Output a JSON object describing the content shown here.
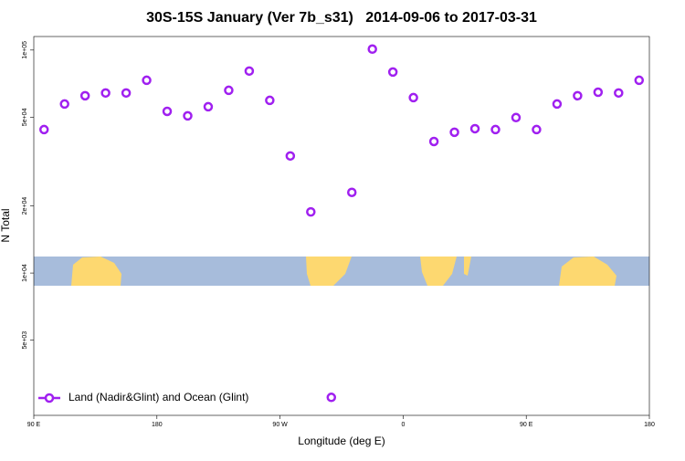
{
  "chart_data": {
    "type": "scatter",
    "title": "30S-15S January (Ver 7b_s31)   2014-09-06 to 2017-03-31",
    "x_label": "Longitude (deg E)",
    "y_label": "N Total",
    "x": [
      97.5,
      112.5,
      127.5,
      142.5,
      157.5,
      172.5,
      187.5,
      202.5,
      217.5,
      232.5,
      247.5,
      262.5,
      277.5,
      292.5,
      307.5,
      322.5,
      337.5,
      352.5,
      367.5,
      382.5,
      397.5,
      412.5,
      427.5,
      442.5,
      457.5,
      472.5,
      487.5,
      502.5,
      517.5,
      532.5
    ],
    "series": [
      {
        "name": "Land (Nadir&Glint) and Ocean (Glint)",
        "color": "#a020f0",
        "values": [
          44000,
          57300,
          62400,
          64200,
          64200,
          73200,
          53100,
          50700,
          55700,
          66000,
          80500,
          59500,
          33500,
          18800,
          2770,
          23000,
          101000,
          79700,
          61200,
          38900,
          42800,
          44400,
          44000,
          49800,
          44000,
          57300,
          62400,
          64700,
          64200,
          73200
        ]
      }
    ],
    "xlim": [
      90,
      540
    ],
    "xticks": [
      {
        "value": 90,
        "label": "90 E"
      },
      {
        "value": 180,
        "label": "180"
      },
      {
        "value": 270,
        "label": "90 W"
      },
      {
        "value": 360,
        "label": "0"
      },
      {
        "value": 450,
        "label": "90 E"
      },
      {
        "value": 540,
        "label": "180"
      }
    ],
    "ylim": [
      2300,
      115000
    ],
    "yscale": "log",
    "yticks": [
      {
        "value": 100000,
        "label": "1e+05"
      },
      {
        "value": 50000,
        "label": "5e+04"
      },
      {
        "value": 20000,
        "label": "2e+04"
      },
      {
        "value": 10000,
        "label": "1e+04"
      },
      {
        "value": 5000,
        "label": "5e+03"
      }
    ],
    "legend": "lower left"
  }
}
